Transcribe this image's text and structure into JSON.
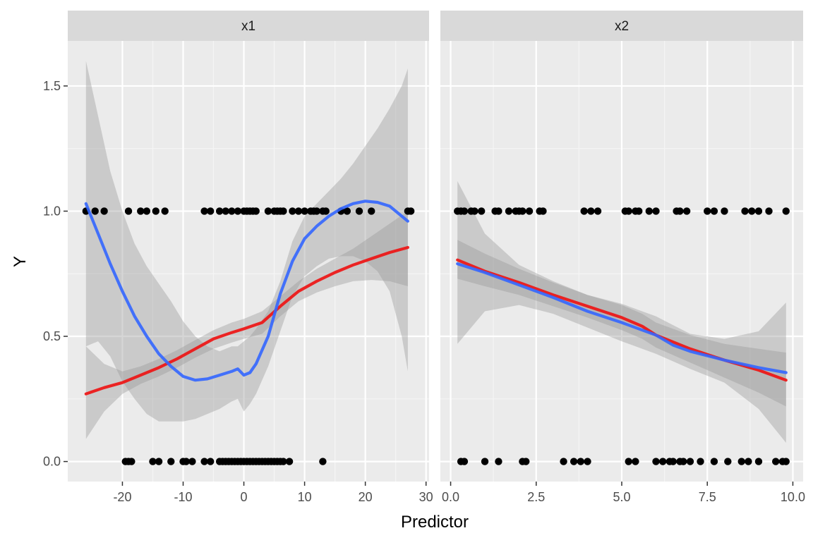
{
  "chart_data": [
    {
      "type": "scatter",
      "facet": "x1",
      "xlabel": "Predictor",
      "ylabel": "Y",
      "xlim": [
        -29,
        30.5
      ],
      "ylim": [
        -0.08,
        1.68
      ],
      "x_ticks": [
        -20,
        -10,
        0,
        10,
        20,
        30
      ],
      "x_tick_labels": [
        "-20",
        "-10",
        "0",
        "10",
        "20",
        "30"
      ],
      "y_ticks": [
        0.0,
        0.5,
        1.0,
        1.5
      ],
      "y_tick_labels": [
        "0.0",
        "0.5",
        "1.0",
        "1.5"
      ],
      "points": {
        "y1_x": [
          -26,
          -24.5,
          -23,
          -19,
          -17,
          -16,
          -14.5,
          -13,
          -6.5,
          -5.5,
          -4,
          -3,
          -2,
          -1,
          0,
          0.5,
          1,
          1.5,
          2,
          4,
          5,
          5.5,
          6,
          6.5,
          8,
          9,
          10,
          11,
          11.5,
          12,
          13,
          13.5,
          16,
          17,
          19,
          21,
          27,
          27.5
        ],
        "y0_x": [
          -19.5,
          -19,
          -18.5,
          -15,
          -14,
          -12,
          -10,
          -9.5,
          -8.5,
          -6.5,
          -5.5,
          -4,
          -3.5,
          -3,
          -2.5,
          -2,
          -1.5,
          -1,
          -0.5,
          0,
          0.5,
          1,
          1.5,
          2,
          2.5,
          3,
          3.5,
          4,
          4.5,
          5,
          5.5,
          6,
          6.5,
          7.5,
          13
        ]
      },
      "series": [
        {
          "color": "#ee1111",
          "x": [
            -26,
            -23,
            -20,
            -17,
            -14,
            -11,
            -8,
            -5,
            -2,
            0,
            3,
            6,
            9,
            12,
            15,
            18,
            21,
            24,
            27
          ],
          "y": [
            0.27,
            0.295,
            0.315,
            0.345,
            0.375,
            0.41,
            0.45,
            0.49,
            0.515,
            0.53,
            0.555,
            0.62,
            0.68,
            0.72,
            0.755,
            0.785,
            0.81,
            0.835,
            0.855
          ],
          "lower": [
            0.09,
            0.2,
            0.27,
            0.31,
            0.34,
            0.375,
            0.415,
            0.45,
            0.475,
            0.49,
            0.51,
            0.58,
            0.64,
            0.675,
            0.7,
            0.72,
            0.725,
            0.72,
            0.7
          ],
          "upper": [
            0.46,
            0.39,
            0.36,
            0.38,
            0.41,
            0.445,
            0.485,
            0.525,
            0.555,
            0.57,
            0.6,
            0.66,
            0.72,
            0.77,
            0.81,
            0.85,
            0.9,
            0.95,
            1.0
          ]
        },
        {
          "color": "#3366ff",
          "x": [
            -26,
            -24,
            -22,
            -20,
            -18,
            -16,
            -14,
            -12,
            -10,
            -8,
            -6,
            -4,
            -2,
            -1,
            0,
            1,
            2,
            4,
            6,
            8,
            10,
            12,
            14,
            16,
            18,
            20,
            22,
            24,
            26,
            27
          ],
          "y": [
            1.03,
            0.91,
            0.79,
            0.68,
            0.58,
            0.5,
            0.43,
            0.38,
            0.34,
            0.325,
            0.33,
            0.345,
            0.36,
            0.37,
            0.345,
            0.355,
            0.39,
            0.5,
            0.67,
            0.8,
            0.89,
            0.94,
            0.98,
            1.01,
            1.03,
            1.04,
            1.035,
            1.02,
            0.98,
            0.96
          ],
          "lower": [
            0.46,
            0.48,
            0.42,
            0.32,
            0.25,
            0.19,
            0.16,
            0.16,
            0.16,
            0.17,
            0.19,
            0.21,
            0.24,
            0.25,
            0.2,
            0.23,
            0.27,
            0.38,
            0.52,
            0.66,
            0.74,
            0.78,
            0.81,
            0.82,
            0.82,
            0.8,
            0.76,
            0.68,
            0.5,
            0.36
          ],
          "upper": [
            1.6,
            1.38,
            1.16,
            1.0,
            0.87,
            0.78,
            0.71,
            0.64,
            0.56,
            0.5,
            0.46,
            0.44,
            0.46,
            0.46,
            0.48,
            0.5,
            0.53,
            0.6,
            0.72,
            0.88,
            0.98,
            1.03,
            1.08,
            1.13,
            1.19,
            1.26,
            1.33,
            1.41,
            1.5,
            1.57
          ]
        }
      ]
    },
    {
      "type": "scatter",
      "facet": "x2",
      "xlabel": "Predictor",
      "ylabel": "Y",
      "xlim": [
        -0.3,
        10.3
      ],
      "ylim": [
        -0.08,
        1.68
      ],
      "x_ticks": [
        0.0,
        2.5,
        5.0,
        7.5,
        10.0
      ],
      "x_tick_labels": [
        "0.0",
        "2.5",
        "5.0",
        "7.5",
        "10.0"
      ],
      "points": {
        "y1_x": [
          0.2,
          0.3,
          0.4,
          0.6,
          0.7,
          0.9,
          1.3,
          1.4,
          1.7,
          1.9,
          2.0,
          2.1,
          2.3,
          2.6,
          2.7,
          3.9,
          4.1,
          4.3,
          5.1,
          5.2,
          5.4,
          5.5,
          5.8,
          6.0,
          6.6,
          6.7,
          6.9,
          7.5,
          7.7,
          8.0,
          8.6,
          8.8,
          9.0,
          9.3,
          9.8
        ],
        "y0_x": [
          0.3,
          0.4,
          1.0,
          1.4,
          2.1,
          2.2,
          3.3,
          3.6,
          3.8,
          4.0,
          5.2,
          5.4,
          6.0,
          6.2,
          6.4,
          6.5,
          6.7,
          6.8,
          7.0,
          7.3,
          7.7,
          8.1,
          8.5,
          8.7,
          9.0,
          9.5,
          9.7,
          9.8
        ]
      },
      "series": [
        {
          "color": "#ee1111",
          "x": [
            0.2,
            1.0,
            2.0,
            3.0,
            4.0,
            5.0,
            5.6,
            6.0,
            7.0,
            8.0,
            9.0,
            9.8
          ],
          "y": [
            0.805,
            0.76,
            0.715,
            0.665,
            0.62,
            0.575,
            0.54,
            0.505,
            0.45,
            0.405,
            0.365,
            0.325
          ],
          "lower": [
            0.73,
            0.7,
            0.665,
            0.62,
            0.575,
            0.525,
            0.49,
            0.455,
            0.395,
            0.335,
            0.275,
            0.22
          ],
          "upper": [
            0.885,
            0.83,
            0.77,
            0.715,
            0.665,
            0.625,
            0.59,
            0.555,
            0.505,
            0.47,
            0.45,
            0.435
          ]
        },
        {
          "color": "#3366ff",
          "x": [
            0.2,
            1.0,
            2.0,
            3.0,
            4.0,
            5.0,
            6.0,
            6.5,
            7.0,
            8.0,
            9.0,
            9.8
          ],
          "y": [
            0.79,
            0.755,
            0.705,
            0.655,
            0.6,
            0.555,
            0.505,
            0.465,
            0.44,
            0.405,
            0.375,
            0.355
          ],
          "lower": [
            0.47,
            0.6,
            0.625,
            0.59,
            0.535,
            0.48,
            0.43,
            0.4,
            0.37,
            0.315,
            0.21,
            0.075
          ],
          "upper": [
            1.12,
            0.91,
            0.785,
            0.72,
            0.665,
            0.63,
            0.58,
            0.545,
            0.51,
            0.49,
            0.52,
            0.635
          ]
        }
      ]
    }
  ]
}
